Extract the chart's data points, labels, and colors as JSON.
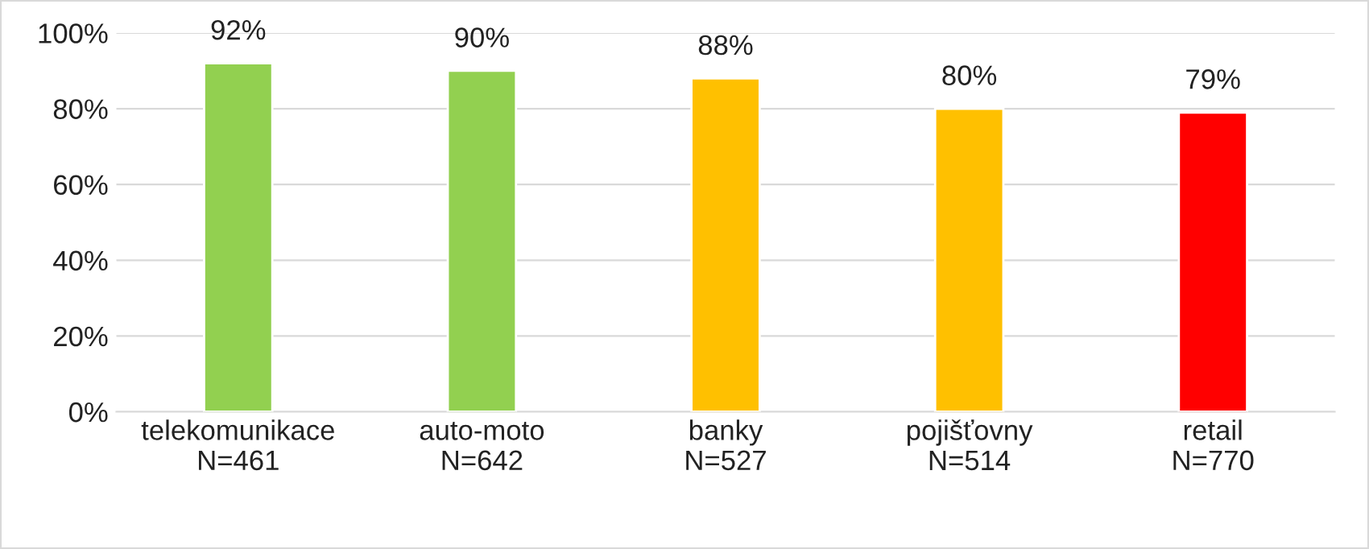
{
  "chart_data": {
    "type": "bar",
    "categories": [
      "telekomunikace\nN=461",
      "auto-moto\nN=642",
      "banky\nN=527",
      "pojišťovny\nN=514",
      "retail\nN=770"
    ],
    "values": [
      92,
      90,
      88,
      80,
      79
    ],
    "colors": [
      "#92d050",
      "#92d050",
      "#ffc000",
      "#ffc000",
      "#ff0000"
    ],
    "value_labels": [
      "92%",
      "90%",
      "88%",
      "80%",
      "79%"
    ],
    "ylim": [
      0,
      100
    ],
    "yticks": [
      {
        "value": 0,
        "label": "0%"
      },
      {
        "value": 20,
        "label": "20%"
      },
      {
        "value": 40,
        "label": "40%"
      },
      {
        "value": 60,
        "label": "60%"
      },
      {
        "value": 80,
        "label": "80%"
      },
      {
        "value": 100,
        "label": "100%"
      }
    ],
    "grid": "y",
    "legend": false
  }
}
